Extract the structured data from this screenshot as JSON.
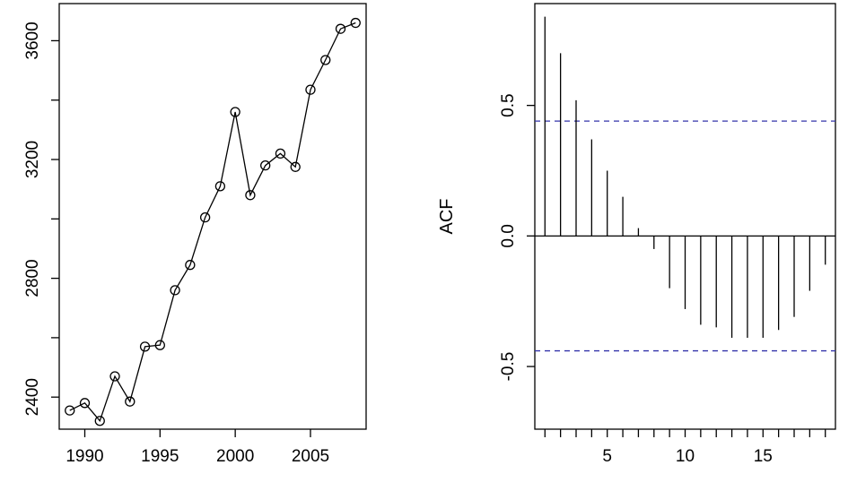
{
  "chart_data": [
    {
      "type": "line",
      "markers": "open-circle",
      "title": "",
      "xlabel": "",
      "ylabel": "",
      "x": [
        1989,
        1990,
        1991,
        1992,
        1993,
        1994,
        1995,
        1996,
        1997,
        1998,
        1999,
        2000,
        2001,
        2002,
        2003,
        2004,
        2005,
        2006,
        2007,
        2008
      ],
      "y": [
        2355,
        2380,
        2320,
        2470,
        2385,
        2570,
        2575,
        2760,
        2845,
        3005,
        3110,
        3360,
        3080,
        3180,
        3220,
        3175,
        3435,
        3535,
        3640,
        3660
      ],
      "xlim": [
        1988.3,
        2008.7
      ],
      "ylim": [
        2292,
        3725
      ],
      "x_ticks": [
        "1990",
        "1995",
        "2000",
        "2005"
      ],
      "y_ticks": [
        "2400",
        "2800",
        "3200",
        "3600"
      ],
      "y_minor_ticks": [
        2400,
        2600,
        2800,
        3000,
        3200,
        3400,
        3600
      ],
      "line_color": "#000000"
    },
    {
      "type": "bar",
      "subtype": "acf",
      "title": "",
      "xlabel": "",
      "ylabel": "ACF",
      "lags": [
        1,
        2,
        3,
        4,
        5,
        6,
        7,
        8,
        9,
        10,
        11,
        12,
        13,
        14,
        15,
        16,
        17,
        18,
        19
      ],
      "values": [
        0.84,
        0.7,
        0.52,
        0.37,
        0.25,
        0.15,
        0.03,
        -0.05,
        -0.2,
        -0.28,
        -0.34,
        -0.35,
        -0.39,
        -0.39,
        -0.39,
        -0.36,
        -0.31,
        -0.21,
        -0.11
      ],
      "xlim": [
        0.35,
        19.65
      ],
      "ylim": [
        -0.74,
        0.89
      ],
      "x_ticks": [
        "5",
        "10",
        "15"
      ],
      "x_minor_ticks": [
        1,
        2,
        3,
        4,
        5,
        6,
        7,
        8,
        9,
        10,
        11,
        12,
        13,
        14,
        15,
        16,
        17,
        18,
        19
      ],
      "y_ticks": [
        "-0.5",
        "0.0",
        "0.5"
      ],
      "confidence_band": 0.44,
      "confidence_color": "#3333aa"
    }
  ]
}
